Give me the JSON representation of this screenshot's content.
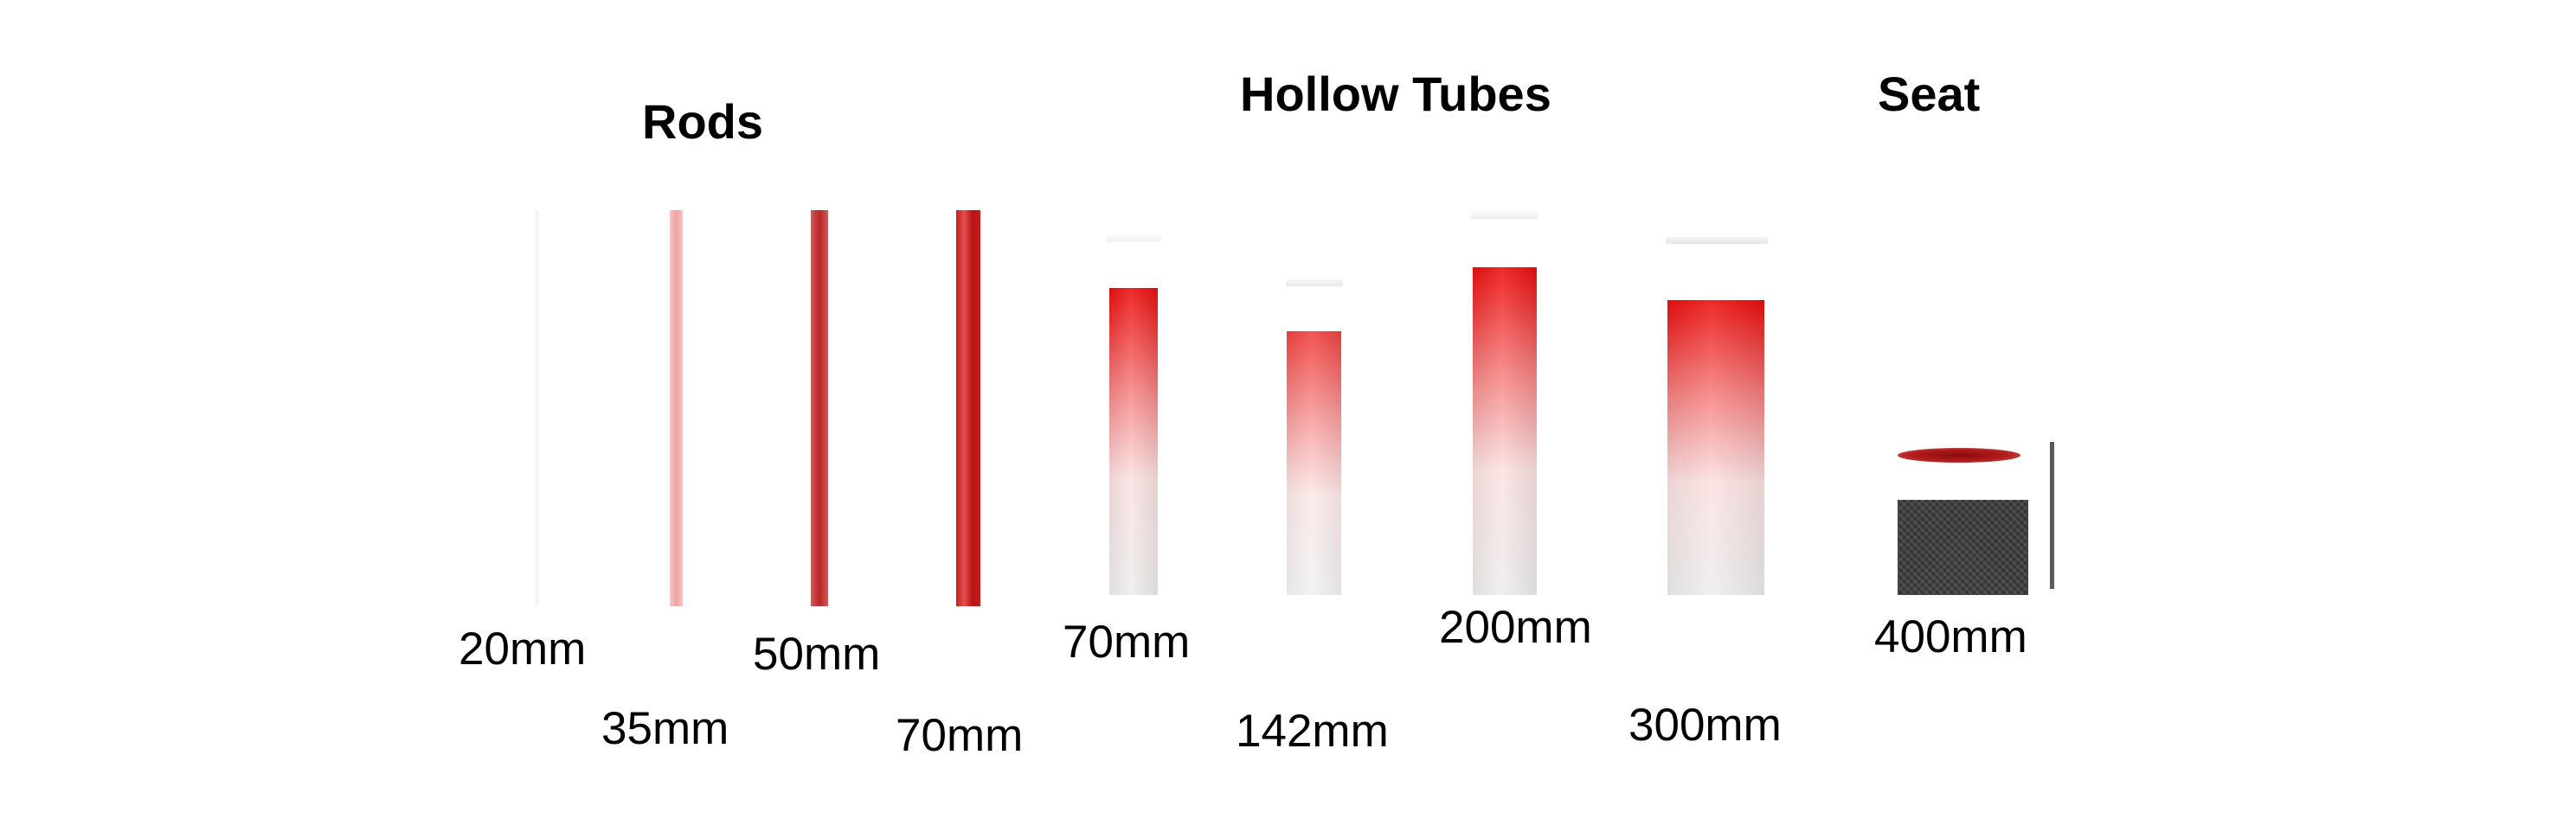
{
  "titles": {
    "rods": "Rods",
    "hollow_tubes": "Hollow Tubes",
    "seat": "Seat"
  },
  "rods": [
    {
      "label": "20mm",
      "color": "#f3f3f3"
    },
    {
      "label": "35mm",
      "color": "#efa3a3"
    },
    {
      "label": "50mm",
      "color": "#b82626"
    },
    {
      "label": "70mm",
      "color": "#c41c1c"
    }
  ],
  "hollow_tubes": [
    {
      "label": "70mm",
      "color": "#ea0000"
    },
    {
      "label": "142mm",
      "color": "#ea0000"
    },
    {
      "label": "200mm",
      "color": "#ea0000"
    },
    {
      "label": "300mm",
      "color": "#ea0000"
    }
  ],
  "seat": {
    "label": "400mm",
    "disc_color": "#8a0a0a",
    "block_color": "#3a3a3a"
  }
}
